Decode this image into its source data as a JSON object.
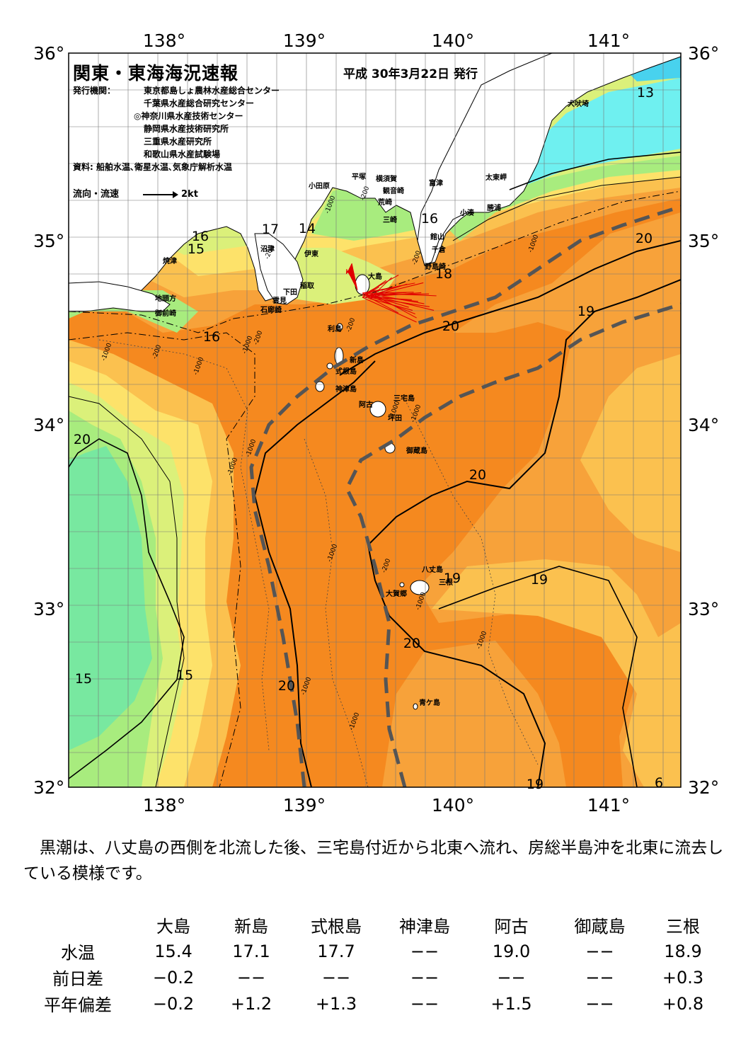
{
  "header": {
    "title": "関東・東海海況速報",
    "date": "平成 30年3月22日 発行",
    "agency_label": "発行機関：",
    "agencies": [
      "東京都島しょ農林水産総合センター",
      "千葉県水産総合研究センター",
      "◎神奈川県水産技術センター",
      "静岡県水産技術研究所",
      "三重県水産研究所",
      "和歌山県水産試験場"
    ],
    "source": "資料: 船舶水温､衛星水温､気象庁解析水温",
    "legend_label": "流向・流速",
    "legend_scale": "2kt"
  },
  "map": {
    "lon_labels": [
      "138°",
      "139°",
      "140°",
      "141°"
    ],
    "lat_labels": [
      "36°",
      "35°",
      "34°",
      "33°",
      "32°"
    ],
    "colors": {
      "sea_warm_20": "#f5891f",
      "sea_19": "#f7a23a",
      "sea_18": "#fbc14f",
      "sea_17": "#fde26a",
      "sea_16_5": "#dbf07a",
      "sea_16": "#a8ec7e",
      "sea_15": "#78e8a0",
      "sea_13": "#6ff0f0",
      "sea_12": "#48d2ee",
      "land": "#ffffff",
      "kuroshio_axis": "#555555",
      "current_vectors": "#e00000"
    },
    "contour_labels": [
      "13",
      "16",
      "15",
      "17",
      "14",
      "16",
      "18",
      "20",
      "19",
      "20",
      "16",
      "20",
      "20",
      "19",
      "19",
      "15",
      "15",
      "20",
      "20",
      "19",
      "6"
    ],
    "depth_labels": [
      "-1000",
      "-200",
      "-1000",
      "-200",
      "-200",
      "-1000",
      "-1000",
      "-1000",
      "-200",
      "-200",
      "-1000",
      "-1000",
      "-200",
      "-1000",
      "-1000",
      "-1000",
      "-1000",
      "-1000",
      "-1000",
      "-200",
      "-1000",
      "-1000"
    ],
    "places": [
      "犬吠埼",
      "太東岬",
      "勝浦",
      "小湊",
      "富津",
      "平塚",
      "横須賀",
      "観音崎",
      "荒崎",
      "小田原",
      "三崎",
      "館山",
      "千倉",
      "野島崎",
      "沼津",
      "伊東",
      "稲取",
      "下田",
      "雲見",
      "石廊崎",
      "焼津",
      "地頭方",
      "御前崎",
      "大島",
      "利島",
      "新島",
      "式根島",
      "神津島",
      "三宅島",
      "阿古",
      "坪田",
      "御蔵島",
      "八丈島",
      "三根",
      "大賀郷",
      "青ケ島"
    ]
  },
  "summary": "黒潮は、八丈島の西側を北流した後、三宅島付近から北東へ流れ、房総半島沖を北東に流去している模様です。",
  "table": {
    "columns": [
      "大島",
      "新島",
      "式根島",
      "神津島",
      "阿古",
      "御蔵島",
      "三根"
    ],
    "rows": [
      {
        "label": "水温",
        "values": [
          "15.4",
          "17.1",
          "17.7",
          "−−",
          "19.0",
          "−−",
          "18.9"
        ]
      },
      {
        "label": "前日差",
        "values": [
          "−0.2",
          "−−",
          "−−",
          "−−",
          "−−",
          "−−",
          "+0.3"
        ]
      },
      {
        "label": "平年偏差",
        "values": [
          "−0.2",
          "+1.2",
          "+1.3",
          "−−",
          "+1.5",
          "−−",
          "+0.8"
        ]
      }
    ]
  }
}
